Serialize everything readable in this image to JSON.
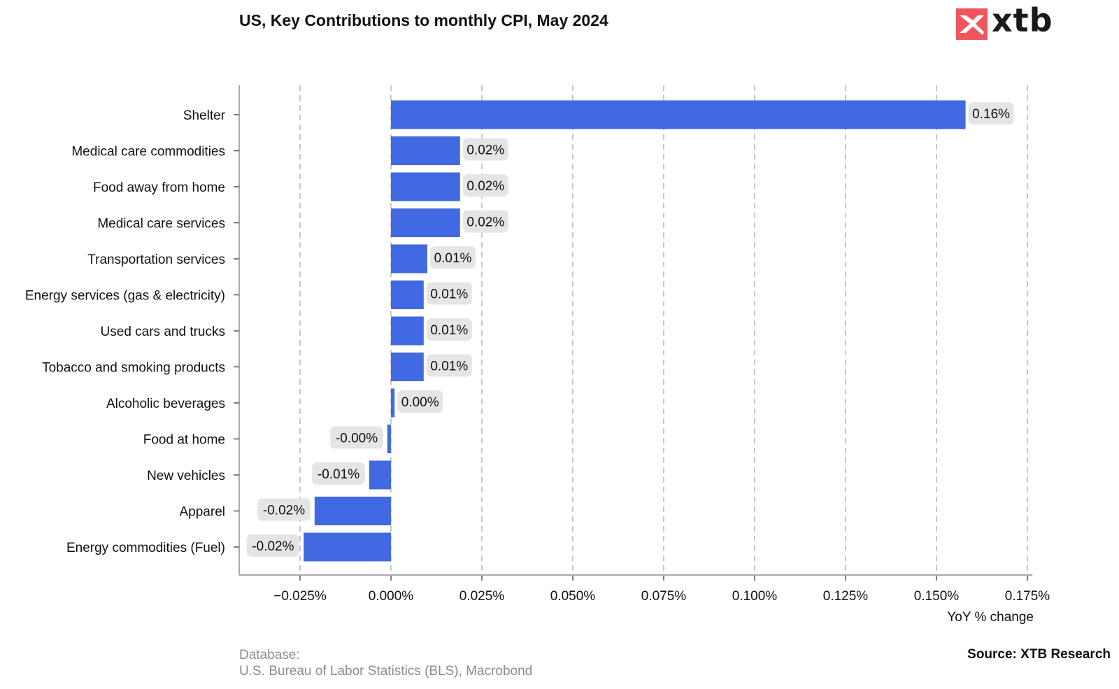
{
  "header": {
    "title": "US, Key Contributions to monthly CPI, May 2024",
    "logo_text": "xtb"
  },
  "footer": {
    "database_label": "Database:",
    "database_sources": "U.S. Bureau of Labor Statistics (BLS), Macrobond",
    "source": "Source: XTB Research"
  },
  "colors": {
    "bar": "#4169e1",
    "label_bg": "#e5e5e5",
    "grid": "#c8c8c8",
    "logo_red": "#f0555f"
  },
  "chart_data": {
    "type": "bar",
    "orientation": "horizontal",
    "title": "US, Key Contributions to monthly CPI, May 2024",
    "xlabel": "YoY % change",
    "ylabel": "",
    "xlim": [
      -0.042,
      0.176
    ],
    "xticks": [
      -0.025,
      0.0,
      0.025,
      0.05,
      0.075,
      0.1,
      0.125,
      0.15,
      0.175
    ],
    "xtick_labels": [
      "−0.025%",
      "0.000%",
      "0.025%",
      "0.050%",
      "0.075%",
      "0.100%",
      "0.125%",
      "0.150%",
      "0.175%"
    ],
    "grid": "vertical dashed",
    "categories": [
      "Shelter",
      "Medical care commodities",
      "Food away from home",
      "Medical care services",
      "Transportation services",
      "Energy services (gas & electricity)",
      "Used cars and trucks",
      "Tobacco and smoking products",
      "Alcoholic beverages",
      "Food at home",
      "New vehicles",
      "Apparel",
      "Energy commodities (Fuel)"
    ],
    "values": [
      0.158,
      0.019,
      0.019,
      0.019,
      0.01,
      0.009,
      0.009,
      0.009,
      0.001,
      -0.001,
      -0.006,
      -0.021,
      -0.024
    ],
    "data_labels": [
      "0.16%",
      "0.02%",
      "0.02%",
      "0.02%",
      "0.01%",
      "0.01%",
      "0.01%",
      "0.01%",
      "0.00%",
      "-0.00%",
      "-0.01%",
      "-0.02%",
      "-0.02%"
    ]
  }
}
